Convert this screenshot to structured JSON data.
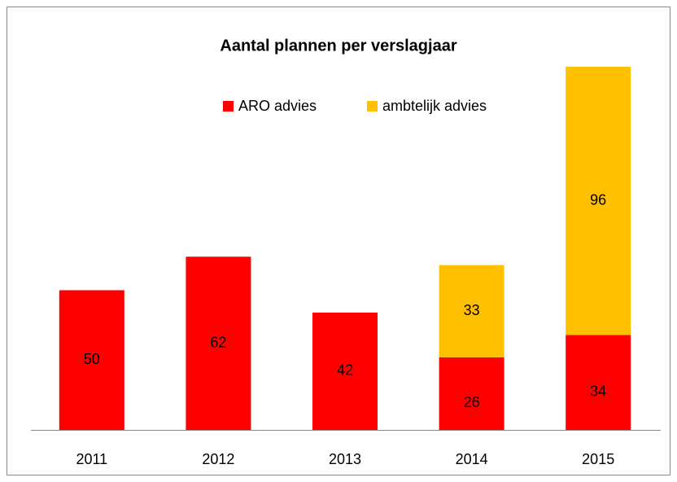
{
  "chart_data": {
    "type": "stacked_bar",
    "title": "Aantal plannen per verslagjaar",
    "categories": [
      "2011",
      "2012",
      "2013",
      "2014",
      "2015"
    ],
    "series": [
      {
        "name": "ARO advies",
        "color": "#ff0000",
        "values": [
          50,
          62,
          42,
          26,
          34
        ]
      },
      {
        "name": "ambtelijk advies",
        "color": "#ffc000",
        "values": [
          null,
          null,
          null,
          33,
          96
        ]
      }
    ],
    "legend": "top"
  }
}
